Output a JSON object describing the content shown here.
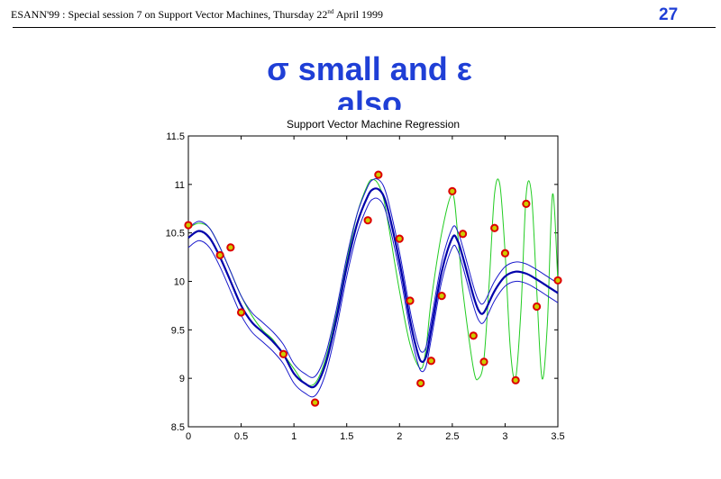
{
  "header": {
    "prefix": "ESANN'99 :  Special session 7 on Support Vector Machines, Thursday 22",
    "superscript": "nd",
    "suffix": " April 1999",
    "page_number": "27"
  },
  "slide": {
    "title_line1": "σ small and ε",
    "title_line2": "also"
  },
  "chart_data": {
    "type": "line",
    "title": "Support Vector Machine Regression",
    "xlabel": "",
    "ylabel": "",
    "xlim": [
      0,
      3.5
    ],
    "ylim": [
      8.5,
      11.5
    ],
    "xticks": [
      0,
      0.5,
      1,
      1.5,
      2,
      2.5,
      3,
      3.5
    ],
    "yticks": [
      8.5,
      9,
      9.5,
      10,
      10.5,
      11,
      11.5
    ],
    "xtick_labels": [
      "0",
      "0.5",
      "1",
      "1.5",
      "2",
      "2.5",
      "3",
      "3.5"
    ],
    "ytick_labels": [
      "8.5",
      "9",
      "9.5",
      "10",
      "10.5",
      "11",
      "11.5"
    ],
    "grid": false,
    "colors": {
      "true_function": "#22cc22",
      "regression": "#0000aa",
      "tube": "#1a1acc",
      "marker_edge": "#dd0000",
      "marker_fill": "#cccc00"
    },
    "epsilon": 0.1,
    "true_function": {
      "x": [
        0,
        0.1,
        0.2,
        0.3,
        0.4,
        0.5,
        0.6,
        0.7,
        0.8,
        0.9,
        1.0,
        1.1,
        1.2,
        1.3,
        1.4,
        1.5,
        1.6,
        1.7,
        1.75,
        1.8,
        1.85,
        1.9,
        2.0,
        2.1,
        2.2,
        2.25,
        2.3,
        2.4,
        2.5,
        2.55,
        2.6,
        2.7,
        2.75,
        2.8,
        2.85,
        2.9,
        2.95,
        3.0,
        3.05,
        3.1,
        3.15,
        3.2,
        3.25,
        3.3,
        3.35,
        3.4,
        3.45,
        3.5
      ],
      "y": [
        10.55,
        10.6,
        10.55,
        10.35,
        10.1,
        9.85,
        9.65,
        9.5,
        9.4,
        9.25,
        9.1,
        8.95,
        8.95,
        9.2,
        9.65,
        10.2,
        10.7,
        11.0,
        11.05,
        11.0,
        10.85,
        10.55,
        9.9,
        9.35,
        9.1,
        9.3,
        9.8,
        10.5,
        10.9,
        10.5,
        9.9,
        9.1,
        9.0,
        9.2,
        10.0,
        10.9,
        11.0,
        10.3,
        9.3,
        9.0,
        9.7,
        10.9,
        10.9,
        9.9,
        9.0,
        9.55,
        10.9,
        10.0
      ]
    },
    "regression": {
      "x": [
        0,
        0.1,
        0.2,
        0.3,
        0.4,
        0.5,
        0.6,
        0.7,
        0.8,
        0.9,
        1.0,
        1.1,
        1.2,
        1.3,
        1.4,
        1.5,
        1.6,
        1.7,
        1.75,
        1.8,
        1.85,
        1.9,
        2.0,
        2.1,
        2.15,
        2.2,
        2.25,
        2.3,
        2.4,
        2.5,
        2.55,
        2.6,
        2.7,
        2.75,
        2.8,
        2.9,
        3.0,
        3.1,
        3.2,
        3.3,
        3.4,
        3.5
      ],
      "y": [
        10.45,
        10.52,
        10.45,
        10.25,
        10.0,
        9.75,
        9.58,
        9.48,
        9.38,
        9.25,
        9.05,
        8.95,
        8.92,
        9.15,
        9.6,
        10.15,
        10.6,
        10.88,
        10.95,
        10.95,
        10.88,
        10.7,
        10.2,
        9.6,
        9.35,
        9.18,
        9.22,
        9.5,
        10.1,
        10.45,
        10.42,
        10.25,
        9.85,
        9.7,
        9.68,
        9.9,
        10.05,
        10.1,
        10.08,
        10.02,
        9.95,
        9.88
      ]
    },
    "data_points": {
      "x": [
        0.0,
        0.3,
        0.4,
        0.5,
        0.9,
        1.2,
        1.7,
        1.8,
        2.0,
        2.1,
        2.2,
        2.3,
        2.4,
        2.5,
        2.6,
        2.7,
        2.8,
        2.9,
        3.0,
        3.1,
        3.2,
        3.3,
        3.5
      ],
      "y": [
        10.58,
        10.27,
        10.35,
        9.68,
        9.25,
        8.75,
        10.63,
        11.1,
        10.44,
        9.8,
        8.95,
        9.18,
        9.85,
        10.93,
        10.49,
        9.44,
        9.17,
        10.55,
        10.29,
        8.98,
        10.8,
        9.74,
        10.01
      ]
    }
  }
}
